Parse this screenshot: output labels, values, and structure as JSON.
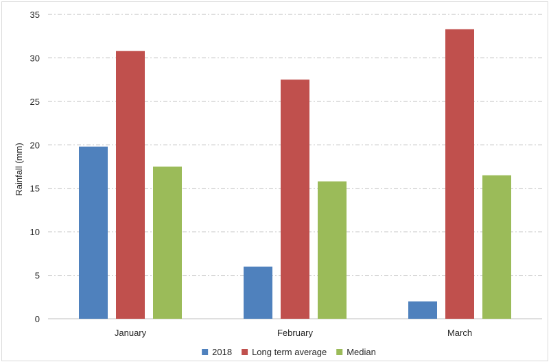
{
  "chart_data": {
    "type": "bar",
    "title": "",
    "xlabel": "",
    "ylabel": "Rainfall (mm)",
    "ylim": [
      0,
      35
    ],
    "yticks": [
      0,
      5,
      10,
      15,
      20,
      25,
      30,
      35
    ],
    "grid": true,
    "legend_position": "bottom",
    "categories": [
      "January",
      "February",
      "March"
    ],
    "series": [
      {
        "name": "2018",
        "color": "#4f81bd",
        "values": [
          19.8,
          6.0,
          2.0
        ]
      },
      {
        "name": "Long term average",
        "color": "#c0504d",
        "values": [
          30.8,
          27.5,
          33.3
        ]
      },
      {
        "name": "Median",
        "color": "#9bbb59",
        "values": [
          17.5,
          15.8,
          16.5
        ]
      }
    ]
  }
}
